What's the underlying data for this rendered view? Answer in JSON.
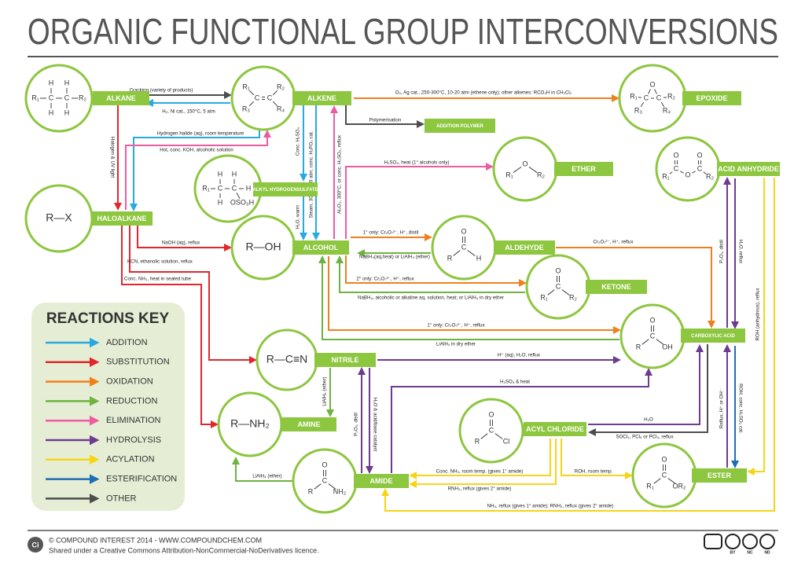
{
  "title": "ORGANIC FUNCTIONAL GROUP INTERCONVERSIONS",
  "nodes": [
    {
      "label": "ALKANE",
      "structure": [
        "R₁",
        "C",
        "C",
        "R₂",
        "H",
        "H",
        "H",
        "H"
      ]
    },
    {
      "label": "ALKENE",
      "structure": [
        "R₁",
        "R₃",
        "C",
        "C",
        "R₂",
        "R₄"
      ]
    },
    {
      "label": "EPOXIDE",
      "structure": [
        "R₁",
        "R₃",
        "C",
        "O",
        "C",
        "R₂",
        "R₄"
      ]
    },
    {
      "label": "ADDITION POLYMER",
      "structure": []
    },
    {
      "label": "ETHER",
      "structure": [
        "R₁",
        "O",
        "R₂"
      ]
    },
    {
      "label": "ACID ANHYDRIDE",
      "structure": [
        "R₁",
        "C",
        "O",
        "O",
        "C",
        "O",
        "R₂"
      ]
    },
    {
      "label": "ALKYL HYDROGENSULFATE",
      "structure": [
        "R₁",
        "C",
        "C",
        "H",
        "H",
        "H",
        "H",
        "OSO₃H"
      ]
    },
    {
      "label": "HALOALKANE",
      "structure": [
        "R—X"
      ]
    },
    {
      "label": "ALCOHOL",
      "structure": [
        "R—OH"
      ]
    },
    {
      "label": "ALDEHYDE",
      "structure": [
        "O",
        "C",
        "R",
        "H"
      ]
    },
    {
      "label": "KETONE",
      "structure": [
        "O",
        "C",
        "R₁",
        "R₂"
      ]
    },
    {
      "label": "CARBOXYLIC ACID",
      "structure": [
        "O",
        "C",
        "R",
        "OH"
      ]
    },
    {
      "label": "NITRILE",
      "structure": [
        "R—C≡N"
      ]
    },
    {
      "label": "AMINE",
      "structure": [
        "R—NH₂"
      ]
    },
    {
      "label": "ACYL CHLORIDE",
      "structure": [
        "O",
        "C",
        "R",
        "Cl"
      ]
    },
    {
      "label": "AMIDE",
      "structure": [
        "O",
        "C",
        "R",
        "NH₂"
      ]
    },
    {
      "label": "ESTER",
      "structure": [
        "O",
        "C",
        "R₁",
        "OR₂"
      ]
    }
  ],
  "reactions": [
    {
      "label": "Cracking (variety of products)",
      "color": "#4d4d4d"
    },
    {
      "label": "H₂, Ni cat., 150°C, 5 atm",
      "color": "#29a9e0"
    },
    {
      "label": "O₂, Ag cat., 250-300°C, 10-20 atm (ethene only); other alkenes: RCO₃H in CH₂Cl₂",
      "color": "#f07f1d"
    },
    {
      "label": "Polymerisation",
      "color": "#4d4d4d"
    },
    {
      "label": "Hydrogen halide (aq), room temperature",
      "color": "#29a9e0"
    },
    {
      "label": "Hot, conc. KOH, alcoholic solution",
      "color": "#ef5ba1"
    },
    {
      "label": "Halogen & UV light",
      "color": "#e3262c"
    },
    {
      "label": "Conc. H₂SO₄",
      "color": "#29a9e0"
    },
    {
      "label": "Steam, 300°C, 60 atm, conc. H₃PO₄ cat.",
      "color": "#29a9e0"
    },
    {
      "label": "Al₂O₃, 300°C, or conc. H₂SO₄, reflux",
      "color": "#ef5ba1"
    },
    {
      "label": "H₂O, warm",
      "color": "#29a9e0"
    },
    {
      "label": "H₂SO₄, heat (1° alcohols only)",
      "color": "#ef5ba1"
    },
    {
      "label": "NaOH (aq), reflux",
      "color": "#e3262c"
    },
    {
      "label": "KCN, ethanolic solution, reflux",
      "color": "#e3262c"
    },
    {
      "label": "Conc. NH₃, heat in sealed tube",
      "color": "#e3262c"
    },
    {
      "label": "1° only: Cr₂O₇²⁻, H⁺, distil",
      "color": "#f07f1d"
    },
    {
      "label": "NaBH₄(aq,heat) or LiAlH₄ (ether)",
      "color": "#6db33f"
    },
    {
      "label": "2° only: Cr₂O₇²⁻, H⁺, reflux",
      "color": "#f07f1d"
    },
    {
      "label": "NaBH₄, alcoholic or alkaline aq. solution, heat; or LiAlH₄ in dry ether",
      "color": "#6db33f"
    },
    {
      "label": "1° only: Cr₂O₇²⁻, H⁺, reflux",
      "color": "#f07f1d"
    },
    {
      "label": "LiAlH₄ in dry ether",
      "color": "#6db33f"
    },
    {
      "label": "Cr₂O₇²⁻, H⁺, reflux",
      "color": "#f07f1d"
    },
    {
      "label": "H⁺ (aq), H₂O, reflux",
      "color": "#6d3b8f"
    },
    {
      "label": "LiAlH₄ (ether)",
      "color": "#6db33f"
    },
    {
      "label": "P₂O₅, distil",
      "color": "#6d3b8f"
    },
    {
      "label": "H₂O & acid/base catalyst",
      "color": "#6d3b8f"
    },
    {
      "label": "H₂SO₄ & heat",
      "color": "#6d3b8f"
    },
    {
      "label": "LiAlH₄ (ether)",
      "color": "#6db33f"
    },
    {
      "label": "H₂O",
      "color": "#6d3b8f"
    },
    {
      "label": "SOCl₂, PCl₅ or PCl₃, reflux",
      "color": "#4d4d4d"
    },
    {
      "label": "Conc. NH₃, room temp. (gives 1° amide)",
      "color": "#f7d417"
    },
    {
      "label": "RNH₂, reflux (gives 2° amide)",
      "color": "#f7d417"
    },
    {
      "label": "ROH, room temp.",
      "color": "#f7d417"
    },
    {
      "label": "NH₃, reflux (gives 1° amide); RNH₂, reflux (gives 2° amide)",
      "color": "#f7d417"
    },
    {
      "label": "P₂O₅, distil",
      "color": "#6d3b8f"
    },
    {
      "label": "H₂O, reflux",
      "color": "#6d3b8f"
    },
    {
      "label": "ROH (anhydrous), reflux",
      "color": "#f7d417"
    },
    {
      "label": "Reflux, H⁺ or OH⁻",
      "color": "#6d3b8f"
    },
    {
      "label": "ROH, conc. H₂SO₄ cat.",
      "color": "#1f6db3"
    }
  ],
  "key": {
    "title": "REACTIONS KEY",
    "items": [
      {
        "name": "ADDITION",
        "color": "#29a9e0"
      },
      {
        "name": "SUBSTITUTION",
        "color": "#e3262c"
      },
      {
        "name": "OXIDATION",
        "color": "#f07f1d"
      },
      {
        "name": "REDUCTION",
        "color": "#6db33f"
      },
      {
        "name": "ELIMINATION",
        "color": "#ef5ba1"
      },
      {
        "name": "HYDROLYSIS",
        "color": "#6d3b8f"
      },
      {
        "name": "ACYLATION",
        "color": "#f7d417"
      },
      {
        "name": "ESTERIFICATION",
        "color": "#1f6db3"
      },
      {
        "name": "OTHER",
        "color": "#4d4d4d"
      }
    ]
  },
  "footer": {
    "logo": "Ci",
    "line1": "© COMPOUND INTEREST 2014 - WWW.COMPOUNDCHEM.COM",
    "line2": "Shared under a Creative Commons Attribution-NonCommercial-NoDerivatives licence.",
    "badges": [
      "BY",
      "NC",
      "ND"
    ]
  }
}
